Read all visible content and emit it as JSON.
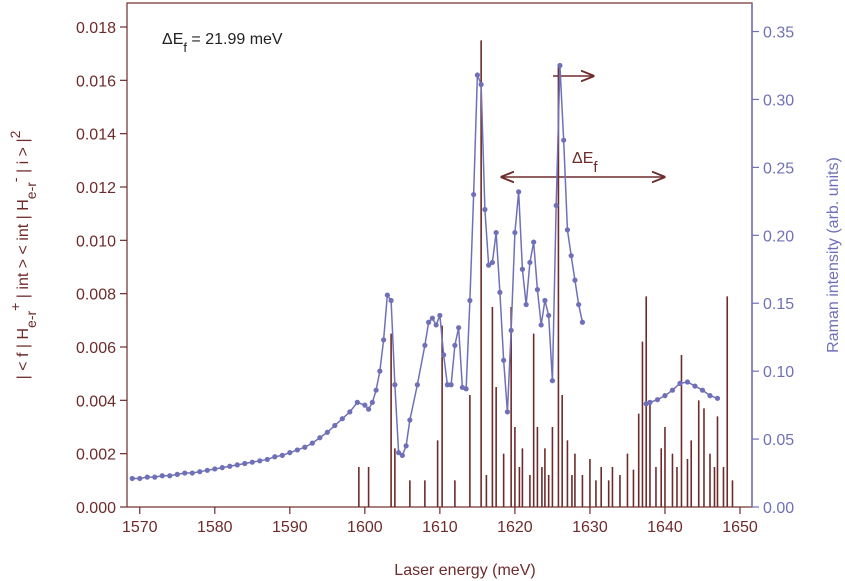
{
  "chart_data": {
    "type": "bar",
    "xlabel": "Laser energy (meV)",
    "ylabel": [
      {
        "text": "| < f | H"
      },
      {
        "text": "e-r",
        "shift": "sub"
      },
      {
        "text": "+",
        "shift": "super"
      },
      {
        "text": " | int > < int | H"
      },
      {
        "text": "e-r",
        "shift": "sub"
      },
      {
        "text": "-",
        "shift": "super"
      },
      {
        "text": " | i > |"
      },
      {
        "text": "2",
        "shift": "super"
      }
    ],
    "y2label": "Raman intensity (arb. units)",
    "annotations": [
      {
        "text": "ΔE",
        "sub": "f",
        "rest": " = 21.99 meV"
      },
      {
        "text": "ΔE",
        "sub": "f"
      }
    ],
    "xlim": [
      1568.3,
      1651.6
    ],
    "xticks": [
      1570,
      1580,
      1590,
      1600,
      1610,
      1620,
      1630,
      1640,
      1650
    ],
    "ylim": [
      0,
      0.0189
    ],
    "yticks": [
      {
        "value": 0,
        "label": "0.000"
      },
      {
        "value": 0.002,
        "label": "0.002"
      },
      {
        "value": 0.004,
        "label": "0.004"
      },
      {
        "value": 0.006,
        "label": "0.006"
      },
      {
        "value": 0.008,
        "label": "0.008"
      },
      {
        "value": 0.01,
        "label": "0.010"
      },
      {
        "value": 0.012,
        "label": "0.012"
      },
      {
        "value": 0.014,
        "label": "0.014"
      },
      {
        "value": 0.016,
        "label": "0.016"
      },
      {
        "value": 0.018,
        "label": "0.018"
      }
    ],
    "y2lim": [
      0,
      0.371
    ],
    "y2ticks": [
      {
        "value": 0,
        "label": "0.00"
      },
      {
        "value": 0.05,
        "label": "0.05"
      },
      {
        "value": 0.1,
        "label": "0.10"
      },
      {
        "value": 0.15,
        "label": "0.15"
      },
      {
        "value": 0.2,
        "label": "0.20"
      },
      {
        "value": 0.25,
        "label": "0.25"
      },
      {
        "value": 0.3,
        "label": "0.30"
      },
      {
        "value": 0.35,
        "label": "0.35"
      }
    ],
    "y_color": "#6e2b2b",
    "y2_color": "#7070b8",
    "series": [
      {
        "type": "bar",
        "color": "#6e2b2b",
        "x": [
          1599.2,
          1600.5,
          1603.5,
          1604.0,
          1606.0,
          1608.0,
          1609.7,
          1610.3,
          1612.0,
          1614.0,
          1615.5,
          1616.2,
          1617.0,
          1617.5,
          1618.5,
          1619.5,
          1620.0,
          1620.6,
          1621.0,
          1622.0,
          1622.5,
          1623.0,
          1623.6,
          1624.0,
          1624.5,
          1625.0,
          1625.8,
          1626.3,
          1627.0,
          1627.6,
          1628.0,
          1629.0,
          1630.0,
          1630.8,
          1631.5,
          1632.5,
          1633.0,
          1634.0,
          1635.0,
          1635.8,
          1636.5,
          1637.0,
          1637.5,
          1638.0,
          1638.8,
          1639.5,
          1640.0,
          1641.0,
          1641.6,
          1642.2,
          1643.0,
          1643.5,
          1644.5,
          1645.2,
          1646.0,
          1646.6,
          1647.0,
          1647.8,
          1648.3,
          1649.0
        ],
        "values": [
          0.0015,
          0.0015,
          0.0065,
          0.0022,
          0.001,
          0.001,
          0.0025,
          0.0068,
          0.001,
          0.0042,
          0.0175,
          0.0012,
          0.0075,
          0.0045,
          0.002,
          0.0075,
          0.003,
          0.0015,
          0.0022,
          0.0012,
          0.0065,
          0.003,
          0.0015,
          0.0022,
          0.0012,
          0.003,
          0.0165,
          0.0042,
          0.0025,
          0.0012,
          0.002,
          0.0012,
          0.0018,
          0.001,
          0.0015,
          0.001,
          0.0015,
          0.0012,
          0.002,
          0.0014,
          0.0035,
          0.0062,
          0.0079,
          0.004,
          0.0015,
          0.0022,
          0.003,
          0.002,
          0.0015,
          0.0057,
          0.0018,
          0.0025,
          0.004,
          0.0037,
          0.002,
          0.0015,
          0.0034,
          0.0015,
          0.0079,
          0.001
        ]
      },
      {
        "type": "line",
        "axis": "y2",
        "color": "#7070b8",
        "x": [
          1569,
          1570,
          1571,
          1572,
          1573,
          1574,
          1575,
          1576,
          1577,
          1578,
          1579,
          1580,
          1581,
          1582,
          1583,
          1584,
          1585,
          1586,
          1587,
          1588,
          1589,
          1590,
          1591,
          1592,
          1593,
          1594,
          1595,
          1596,
          1597,
          1598,
          1599,
          1600,
          1600.5,
          1601,
          1601.5,
          1602,
          1602.5,
          1603,
          1603.5,
          1604,
          1604.5,
          1605,
          1605.5,
          1606,
          1607,
          1608,
          1608.5,
          1609,
          1609.5,
          1610,
          1610.5,
          1611,
          1611.5,
          1612,
          1612.5,
          1613,
          1613.5,
          1614,
          1614.5,
          1615,
          1615.5,
          1616,
          1616.5,
          1617,
          1617.5,
          1618,
          1618.5,
          1619,
          1619.5,
          1620,
          1620.5,
          1621,
          1621.5,
          1622,
          1622.5,
          1623,
          1623.5,
          1624,
          1624.5,
          1625,
          1625.5,
          1626,
          1626.5,
          1627,
          1627.5,
          1628,
          1628.5,
          1629,
          1633,
          1637.5,
          1638,
          1639,
          1640,
          1641,
          1642,
          1643,
          1644,
          1645,
          1646,
          1647
        ],
        "values": [
          0.021,
          0.021,
          0.022,
          0.022,
          0.023,
          0.023,
          0.024,
          0.025,
          0.025,
          0.026,
          0.027,
          0.028,
          0.029,
          0.03,
          0.031,
          0.032,
          0.033,
          0.034,
          0.035,
          0.037,
          0.038,
          0.04,
          0.042,
          0.044,
          0.047,
          0.051,
          0.055,
          0.06,
          0.065,
          0.07,
          0.077,
          0.075,
          0.072,
          0.077,
          0.086,
          0.1,
          0.123,
          0.156,
          0.152,
          0.09,
          0.04,
          0.038,
          0.045,
          0.064,
          0.09,
          0.119,
          0.136,
          0.139,
          0.134,
          0.141,
          0.112,
          0.09,
          0.09,
          0.119,
          0.132,
          0.088,
          0.087,
          0.152,
          0.23,
          0.318,
          0.311,
          0.219,
          0.178,
          0.18,
          0.202,
          0.158,
          0.108,
          0.07,
          0.13,
          0.202,
          0.232,
          0.175,
          0.149,
          0.18,
          0.195,
          0.16,
          0.134,
          0.152,
          0.141,
          0.093,
          0.222,
          0.325,
          0.27,
          0.204,
          0.185,
          0.167,
          0.149,
          0.136,
          null,
          0.076,
          0.077,
          0.079,
          0.082,
          0.086,
          0.091,
          0.092,
          0.089,
          0.086,
          0.082,
          0.08
        ]
      }
    ]
  }
}
